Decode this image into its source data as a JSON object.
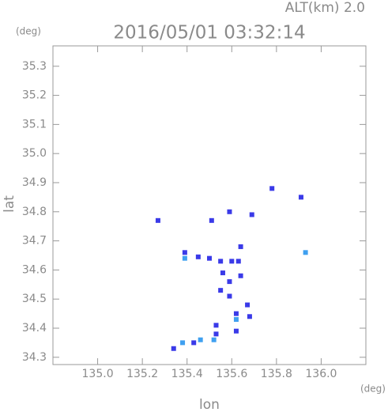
{
  "chart_data": {
    "type": "scatter",
    "title": "2016/05/01 03:32:14",
    "altitude_label": "ALT(km) 2.0",
    "y_unit": "(deg)",
    "x_unit": "(deg)",
    "xlabel": "lon",
    "ylabel": "lat",
    "xlim": [
      134.8,
      136.2
    ],
    "ylim": [
      34.275,
      35.37
    ],
    "xticks": [
      {
        "value": 135,
        "label": "135.0"
      },
      135.2,
      135.4,
      135.6,
      135.8,
      {
        "value": 136,
        "label": "136.0"
      }
    ],
    "yticks": [
      34.3,
      34.4,
      34.5,
      34.6,
      34.7,
      34.8,
      34.9,
      {
        "value": 35,
        "label": "35.0"
      },
      35.1,
      35.2,
      35.3
    ],
    "series": [
      {
        "color": "#3a3ae8",
        "x": [
          135.27,
          135.51,
          135.59,
          135.69,
          135.78,
          135.91,
          135.39,
          135.45,
          135.5,
          135.55,
          135.6,
          135.64,
          135.63,
          135.56,
          135.59,
          135.55,
          135.64,
          135.59,
          135.67,
          135.68,
          135.62,
          135.53,
          135.53,
          135.62,
          135.43,
          135.34
        ],
        "y": [
          34.77,
          34.77,
          34.8,
          34.79,
          34.88,
          34.85,
          34.66,
          34.645,
          34.64,
          34.63,
          34.63,
          34.68,
          34.63,
          34.59,
          34.56,
          34.53,
          34.58,
          34.51,
          34.48,
          34.44,
          34.45,
          34.41,
          34.38,
          34.39,
          34.35,
          34.33
        ]
      },
      {
        "color": "#3fa0f0",
        "x": [
          135.93,
          135.39,
          135.62,
          135.38,
          135.46,
          135.52
        ],
        "y": [
          34.66,
          34.64,
          34.43,
          34.35,
          34.36,
          34.36
        ]
      }
    ]
  }
}
